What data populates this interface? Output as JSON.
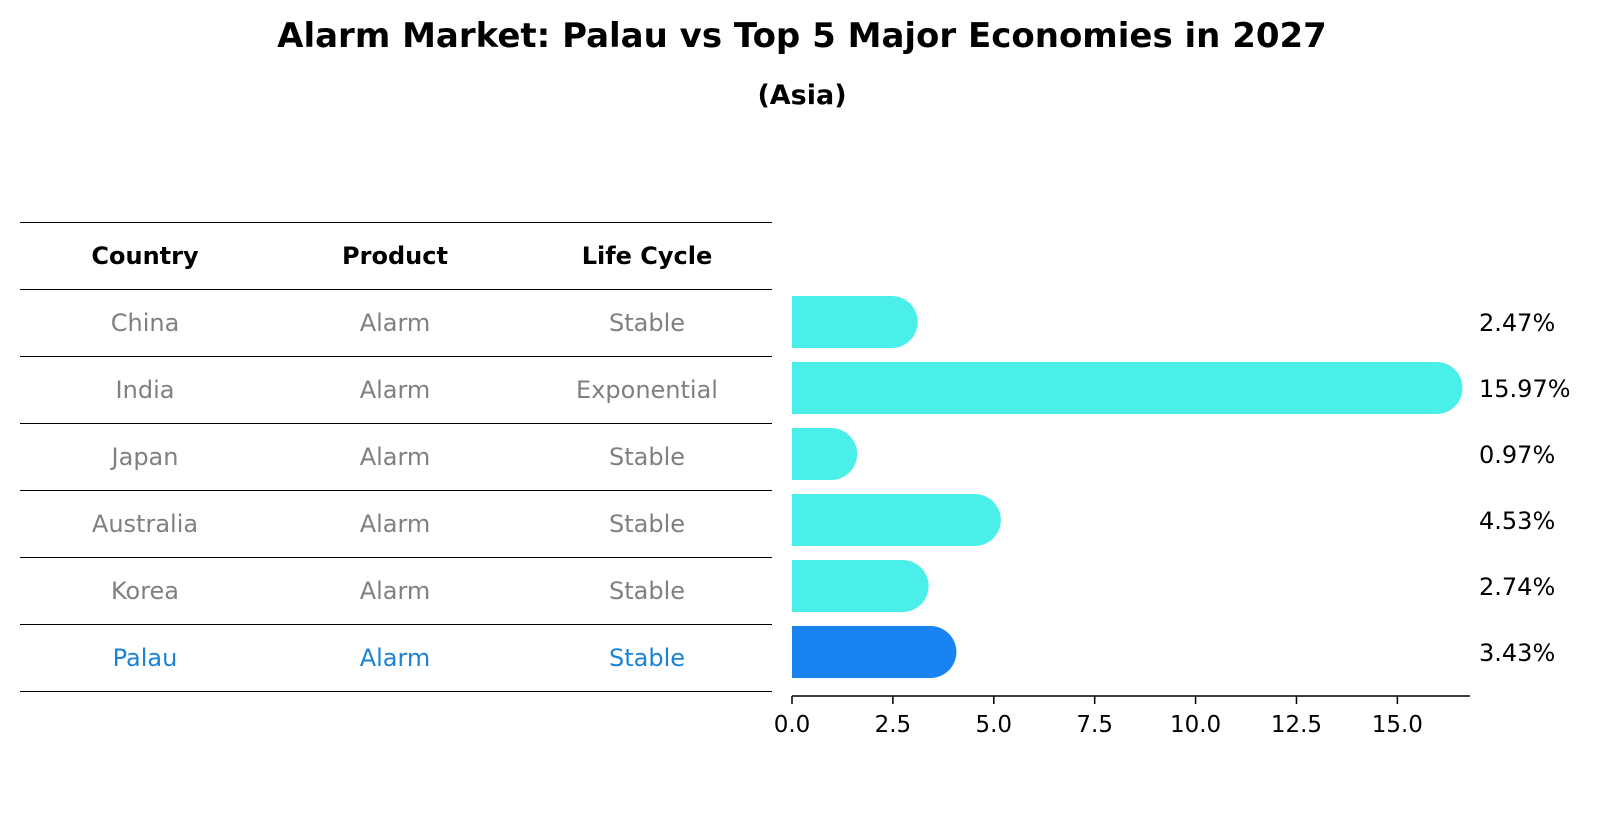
{
  "title": "Alarm Market: Palau vs Top 5 Major Economies in 2027",
  "subtitle": "(Asia)",
  "table": {
    "headers": [
      "Country",
      "Product",
      "Life Cycle"
    ],
    "rows": [
      {
        "country": "China",
        "product": "Alarm",
        "life_cycle": "Stable"
      },
      {
        "country": "India",
        "product": "Alarm",
        "life_cycle": "Exponential"
      },
      {
        "country": "Japan",
        "product": "Alarm",
        "life_cycle": "Stable"
      },
      {
        "country": "Australia",
        "product": "Alarm",
        "life_cycle": "Stable"
      },
      {
        "country": "Korea",
        "product": "Alarm",
        "life_cycle": "Stable"
      },
      {
        "country": "Palau",
        "product": "Alarm",
        "life_cycle": "Stable"
      }
    ]
  },
  "chart_data": {
    "type": "bar",
    "orientation": "horizontal",
    "title": "Alarm Market: Palau vs Top 5 Major Economies in 2027",
    "subtitle": "(Asia)",
    "categories": [
      "China",
      "India",
      "Japan",
      "Australia",
      "Korea",
      "Palau"
    ],
    "values": [
      2.47,
      15.97,
      0.97,
      4.53,
      2.74,
      3.43
    ],
    "value_labels": [
      "2.47%",
      "15.97%",
      "0.97%",
      "4.53%",
      "2.74%",
      "3.43%"
    ],
    "highlight": "Palau",
    "xlim": [
      0,
      16.8
    ],
    "xticks": [
      0.0,
      2.5,
      5.0,
      7.5,
      10.0,
      12.5,
      15.0
    ],
    "xtick_labels": [
      "0.0",
      "2.5",
      "5.0",
      "7.5",
      "10.0",
      "12.5",
      "15.0"
    ],
    "xlabel": "",
    "ylabel": "",
    "grid": false,
    "colors": {
      "default": "#4aefea",
      "highlight": "#1a83f2"
    }
  }
}
